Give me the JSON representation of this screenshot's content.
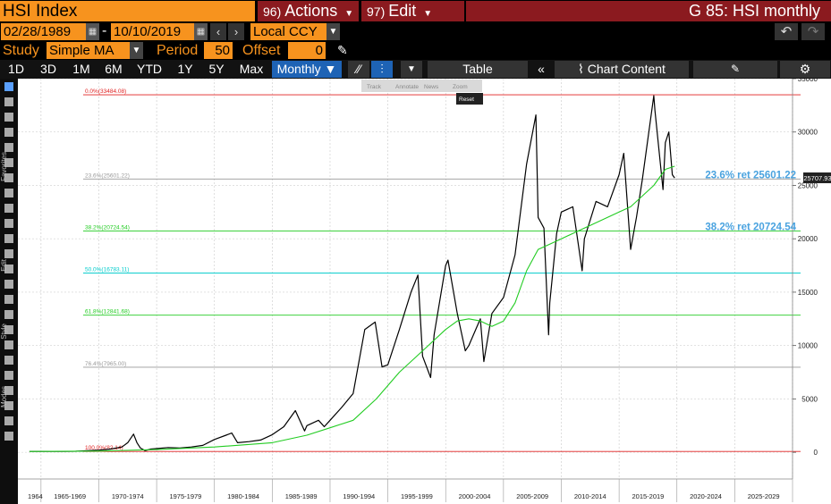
{
  "header": {
    "ticker": "HSI Index",
    "actions_num": "96)",
    "actions_label": "Actions",
    "edit_num": "97)",
    "edit_label": "Edit",
    "title": "G 85: HSI monthly"
  },
  "controls": {
    "start_date": "02/28/1989",
    "dash": "-",
    "end_date": "10/10/2019",
    "currency": "Local CCY",
    "study_label": "Study",
    "study_value": "Simple MA",
    "period_label": "Period",
    "period_value": "50",
    "offset_label": "Offset",
    "offset_value": "0"
  },
  "toolbar": {
    "ranges": [
      "1D",
      "3D",
      "1M",
      "6M",
      "YTD",
      "1Y",
      "5Y",
      "Max"
    ],
    "frequency": "Monthly",
    "table_label": "Table",
    "chart_content_label": "Chart Content"
  },
  "mini_toolbar": {
    "items": [
      "Track",
      "Annotate",
      "News",
      "Zoom"
    ],
    "reset": "Reset"
  },
  "side_tabs": [
    "Favorites",
    "Edit",
    "Style",
    "Modes"
  ],
  "colors": {
    "orange": "#f7931e",
    "red_bar": "#8b1a1f",
    "blue_select": "#1e63b5",
    "price_line": "#000000",
    "ma_line": "#22cc22"
  },
  "chart_data": {
    "type": "line",
    "series": [
      {
        "x": [
          1964,
          1965,
          1966,
          1967,
          1968,
          1969,
          1970,
          1971,
          1972,
          1972.5,
          1973,
          1973.3,
          1973.6,
          1974,
          1974.5,
          1975,
          1976,
          1977,
          1978,
          1979,
          1980,
          1981,
          1981.5,
          1982,
          1983,
          1984,
          1985,
          1986,
          1987,
          1987.8,
          1988,
          1989,
          1989.5,
          1990,
          1991,
          1992,
          1993,
          1993.9,
          1994.5,
          1995,
          1996,
          1997,
          1997.6,
          1998,
          1998.7,
          1999,
          2000,
          2000.2,
          2001,
          2001.7,
          2002,
          2003,
          2003.3,
          2004,
          2005,
          2006,
          2007,
          2007.8,
          2008,
          2008.5,
          2008.9,
          2009,
          2009.6,
          2010,
          2011,
          2011.8,
          2012,
          2013,
          2014,
          2015,
          2015.4,
          2016,
          2016.5,
          2017,
          2018,
          2018.1,
          2018.8,
          2019,
          2019.3,
          2019.6,
          2019.8
        ],
        "y": [
          82,
          90,
          90,
          80,
          95,
          150,
          200,
          300,
          500,
          900,
          1700,
          900,
          400,
          150,
          300,
          350,
          450,
          400,
          500,
          650,
          1200,
          1600,
          1800,
          900,
          1000,
          1150,
          1650,
          2400,
          3900,
          2000,
          2500,
          3000,
          2400,
          3000,
          4200,
          5500,
          11500,
          12200,
          8000,
          8200,
          11500,
          15000,
          16600,
          9000,
          7000,
          11000,
          17500,
          18000,
          13000,
          9500,
          10000,
          12500,
          8500,
          13000,
          14500,
          18500,
          27000,
          31600,
          22000,
          21000,
          11000,
          14000,
          20500,
          22500,
          23000,
          17000,
          20000,
          23500,
          23000,
          26000,
          28000,
          19000,
          22000,
          25500,
          33400,
          32000,
          24600,
          29000,
          30000,
          26000,
          25700
        ]
      },
      {
        "x": [
          1964,
          1970,
          1975,
          1980,
          1985,
          1988,
          1990,
          1992,
          1994,
          1996,
          1998,
          2000,
          2001,
          2002,
          2003,
          2004,
          2005,
          2006,
          2007,
          2008,
          2009,
          2010,
          2011,
          2012,
          2013,
          2014,
          2015,
          2016,
          2017,
          2018,
          2019,
          2019.8
        ],
        "y": [
          82,
          110,
          250,
          500,
          900,
          1600,
          2300,
          3000,
          5000,
          7500,
          9500,
          11500,
          12300,
          12500,
          12300,
          11800,
          12300,
          14000,
          17000,
          19000,
          19500,
          20000,
          20500,
          21000,
          21500,
          22000,
          22500,
          23000,
          24000,
          25000,
          26500,
          26800
        ]
      }
    ],
    "fib_levels": [
      {
        "label": "0.0%(33484.08)",
        "value": 33484.08,
        "color": "#e02020"
      },
      {
        "label": "23.6%(25601.22)",
        "value": 25601.22,
        "color": "#999999"
      },
      {
        "label": "38.2%(20724.54)",
        "value": 20724.54,
        "color": "#22cc22"
      },
      {
        "label": "50.0%(16783.11)",
        "value": 16783.11,
        "color": "#00cccc"
      },
      {
        "label": "61.8%(12841.68)",
        "value": 12841.68,
        "color": "#22cc22"
      },
      {
        "label": "76.4%(7965.00)",
        "value": 7965.0,
        "color": "#999999"
      },
      {
        "label": "100.0%(82.14)",
        "value": 82.14,
        "color": "#e02020"
      }
    ],
    "annotations": [
      {
        "text": "23.6% ret 25601.22",
        "value": 25601.22
      },
      {
        "text": "38.2% ret 20724.54",
        "value": 20724.54
      }
    ],
    "last_price": "25707.93",
    "last_value": 25707.93,
    "xlim": [
      1963,
      2030
    ],
    "ylim": [
      -2500,
      35000
    ],
    "y_ticks": [
      0,
      5000,
      10000,
      15000,
      20000,
      25000,
      30000,
      35000
    ],
    "x_ticks": [
      {
        "label": "1964",
        "start": 1964,
        "end": 1965
      },
      {
        "label": "1965-1969",
        "start": 1965,
        "end": 1970
      },
      {
        "label": "1970-1974",
        "start": 1970,
        "end": 1975
      },
      {
        "label": "1975-1979",
        "start": 1975,
        "end": 1980
      },
      {
        "label": "1980-1984",
        "start": 1980,
        "end": 1985
      },
      {
        "label": "1985-1989",
        "start": 1985,
        "end": 1990
      },
      {
        "label": "1990-1994",
        "start": 1990,
        "end": 1995
      },
      {
        "label": "1995-1999",
        "start": 1995,
        "end": 2000
      },
      {
        "label": "2000-2004",
        "start": 2000,
        "end": 2005
      },
      {
        "label": "2005-2009",
        "start": 2005,
        "end": 2010
      },
      {
        "label": "2010-2014",
        "start": 2010,
        "end": 2015
      },
      {
        "label": "2015-2019",
        "start": 2015,
        "end": 2020
      },
      {
        "label": "2020-2024",
        "start": 2020,
        "end": 2025
      },
      {
        "label": "2025-2029",
        "start": 2025,
        "end": 2030
      }
    ],
    "grid": true
  }
}
